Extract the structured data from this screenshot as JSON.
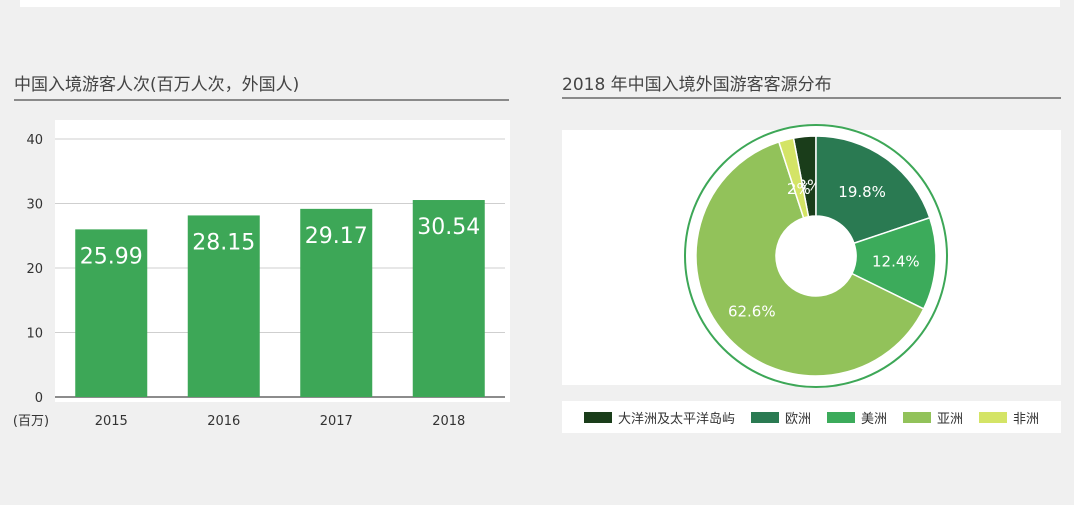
{
  "bar_chart": {
    "title": "中国入境游客人次(百万人次，外国人)",
    "unit_label": "(百万)"
  },
  "pie_chart": {
    "title": "2018 年中国入境外国游客客源分布"
  },
  "chart_data": [
    {
      "type": "bar",
      "title": "中国入境游客人次(百万人次，外国人)",
      "categories": [
        "2015",
        "2016",
        "2017",
        "2018"
      ],
      "values": [
        25.99,
        28.15,
        29.17,
        30.54
      ],
      "value_labels": [
        "25.99",
        "28.15",
        "29.17",
        "30.54"
      ],
      "ylabel": "(百万)",
      "ylim": [
        0,
        40
      ],
      "yticks": [
        "0",
        "10",
        "20",
        "30",
        "40"
      ],
      "grid": true,
      "bar_color": "#3da757"
    },
    {
      "type": "pie",
      "donut": true,
      "title": "2018 年中国入境外国游客客源分布",
      "labels": [
        "大洋洲及太平洋岛屿",
        "欧洲",
        "美洲",
        "亚洲",
        "非洲"
      ],
      "values": [
        3,
        19.8,
        12.4,
        62.6,
        2
      ],
      "value_labels": [
        "3%",
        "19.8%",
        "12.4%",
        "62.6%",
        "2%"
      ],
      "colors": [
        "#1a3d1a",
        "#2a7a52",
        "#3cab5b",
        "#92c25a",
        "#d4e466"
      ],
      "legend": "bottom"
    }
  ]
}
